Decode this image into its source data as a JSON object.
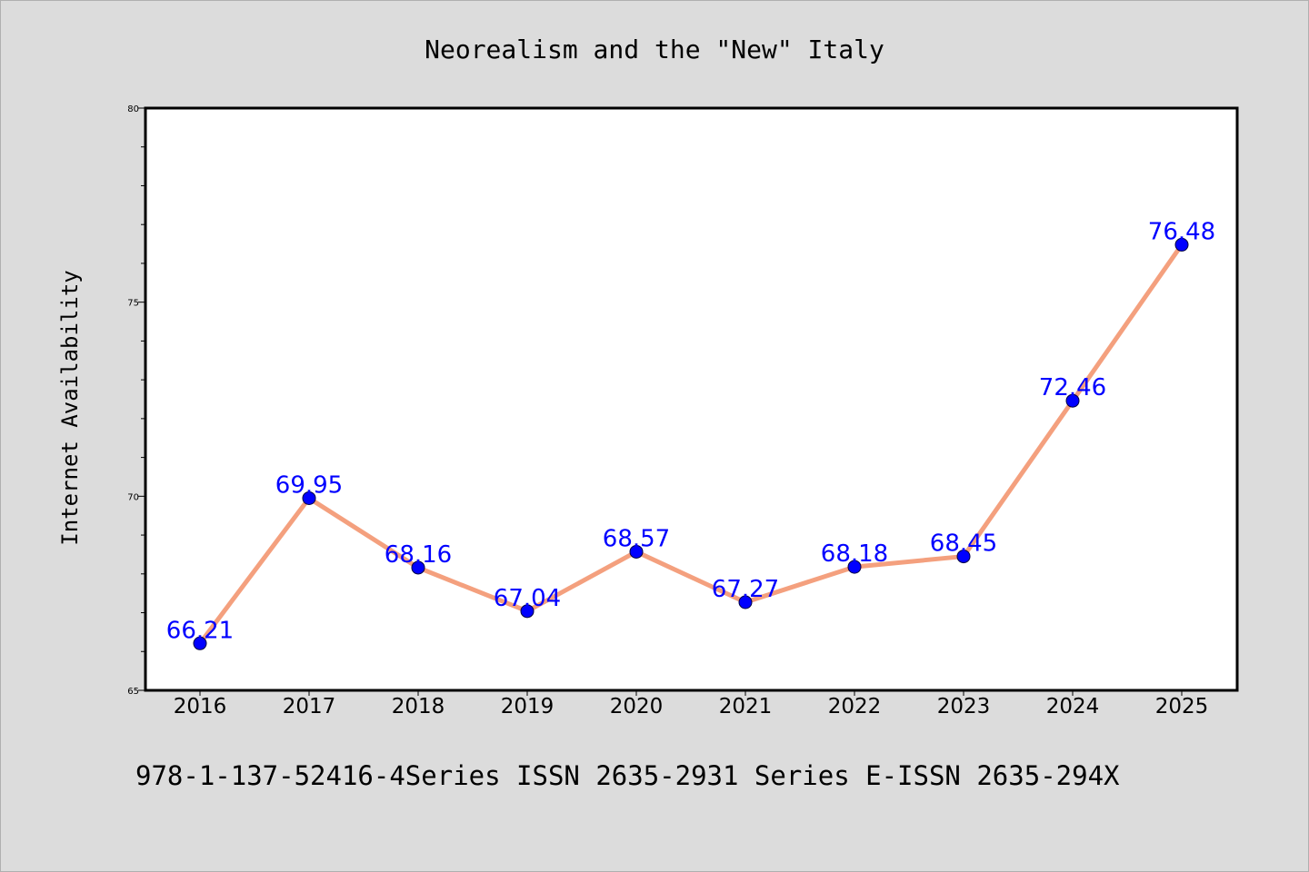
{
  "colors": {
    "background": "#dcdcdc",
    "plot_background": "#ffffff",
    "line": "#f4a07e",
    "marker": "#0000ff",
    "data_label": "#0000ff"
  },
  "footer_text": "978-1-137-52416-4Series ISSN 2635-2931 Series E-ISSN 2635-294X",
  "chart_data": {
    "type": "line",
    "title": "Neorealism and the \"New\" Italy",
    "xlabel": "",
    "ylabel": "Internet Availability",
    "categories": [
      "2016",
      "2017",
      "2018",
      "2019",
      "2020",
      "2021",
      "2022",
      "2023",
      "2024",
      "2025"
    ],
    "series": [
      {
        "values": [
          66.21,
          69.95,
          68.16,
          67.04,
          68.57,
          67.27,
          68.18,
          68.45,
          72.46,
          76.48
        ],
        "labels": [
          "66.21",
          "69.95",
          "68.16",
          "67.04",
          "68.57",
          "67.27",
          "68.18",
          "68.45",
          "72.46",
          "76.48"
        ]
      }
    ],
    "ylim": [
      65,
      80
    ],
    "yticks": [
      "65",
      "70",
      "75",
      "80"
    ],
    "grid": false,
    "legend": "none"
  }
}
